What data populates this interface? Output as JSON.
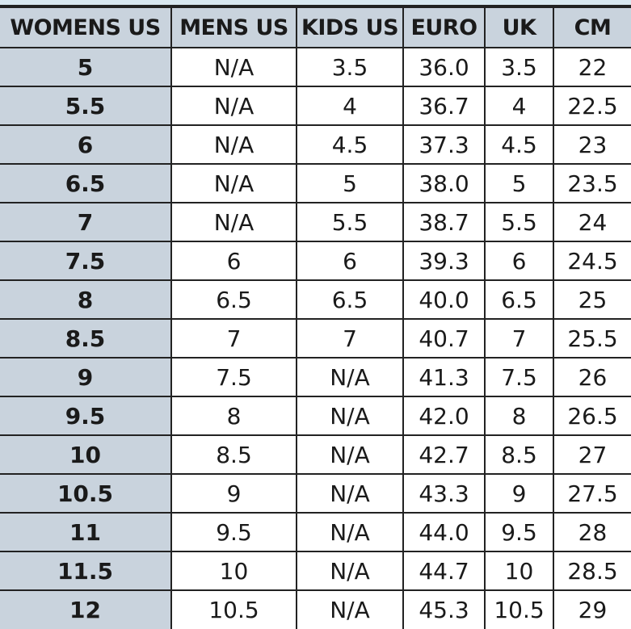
{
  "columns": [
    "WOMENS US",
    "MENS US",
    "KIDS US",
    "EURO",
    "UK",
    "CM"
  ],
  "rows": [
    [
      "5",
      "N/A",
      "3.5",
      "36.0",
      "3.5",
      "22"
    ],
    [
      "5.5",
      "N/A",
      "4",
      "36.7",
      "4",
      "22.5"
    ],
    [
      "6",
      "N/A",
      "4.5",
      "37.3",
      "4.5",
      "23"
    ],
    [
      "6.5",
      "N/A",
      "5",
      "38.0",
      "5",
      "23.5"
    ],
    [
      "7",
      "N/A",
      "5.5",
      "38.7",
      "5.5",
      "24"
    ],
    [
      "7.5",
      "6",
      "6",
      "39.3",
      "6",
      "24.5"
    ],
    [
      "8",
      "6.5",
      "6.5",
      "40.0",
      "6.5",
      "25"
    ],
    [
      "8.5",
      "7",
      "7",
      "40.7",
      "7",
      "25.5"
    ],
    [
      "9",
      "7.5",
      "N/A",
      "41.3",
      "7.5",
      "26"
    ],
    [
      "9.5",
      "8",
      "N/A",
      "42.0",
      "8",
      "26.5"
    ],
    [
      "10",
      "8.5",
      "N/A",
      "42.7",
      "8.5",
      "27"
    ],
    [
      "10.5",
      "9",
      "N/A",
      "43.3",
      "9",
      "27.5"
    ],
    [
      "11",
      "9.5",
      "N/A",
      "44.0",
      "9.5",
      "28"
    ],
    [
      "11.5",
      "10",
      "N/A",
      "44.7",
      "10",
      "28.5"
    ],
    [
      "12",
      "10.5",
      "N/A",
      "45.3",
      "10.5",
      "29"
    ]
  ],
  "colors": {
    "header_bg": "#c9d3dd",
    "first_col_bg": "#c9d3dd",
    "cell_bg": "#ffffff",
    "grid_line": "#222222",
    "top_strip": "#d9e8f0"
  }
}
